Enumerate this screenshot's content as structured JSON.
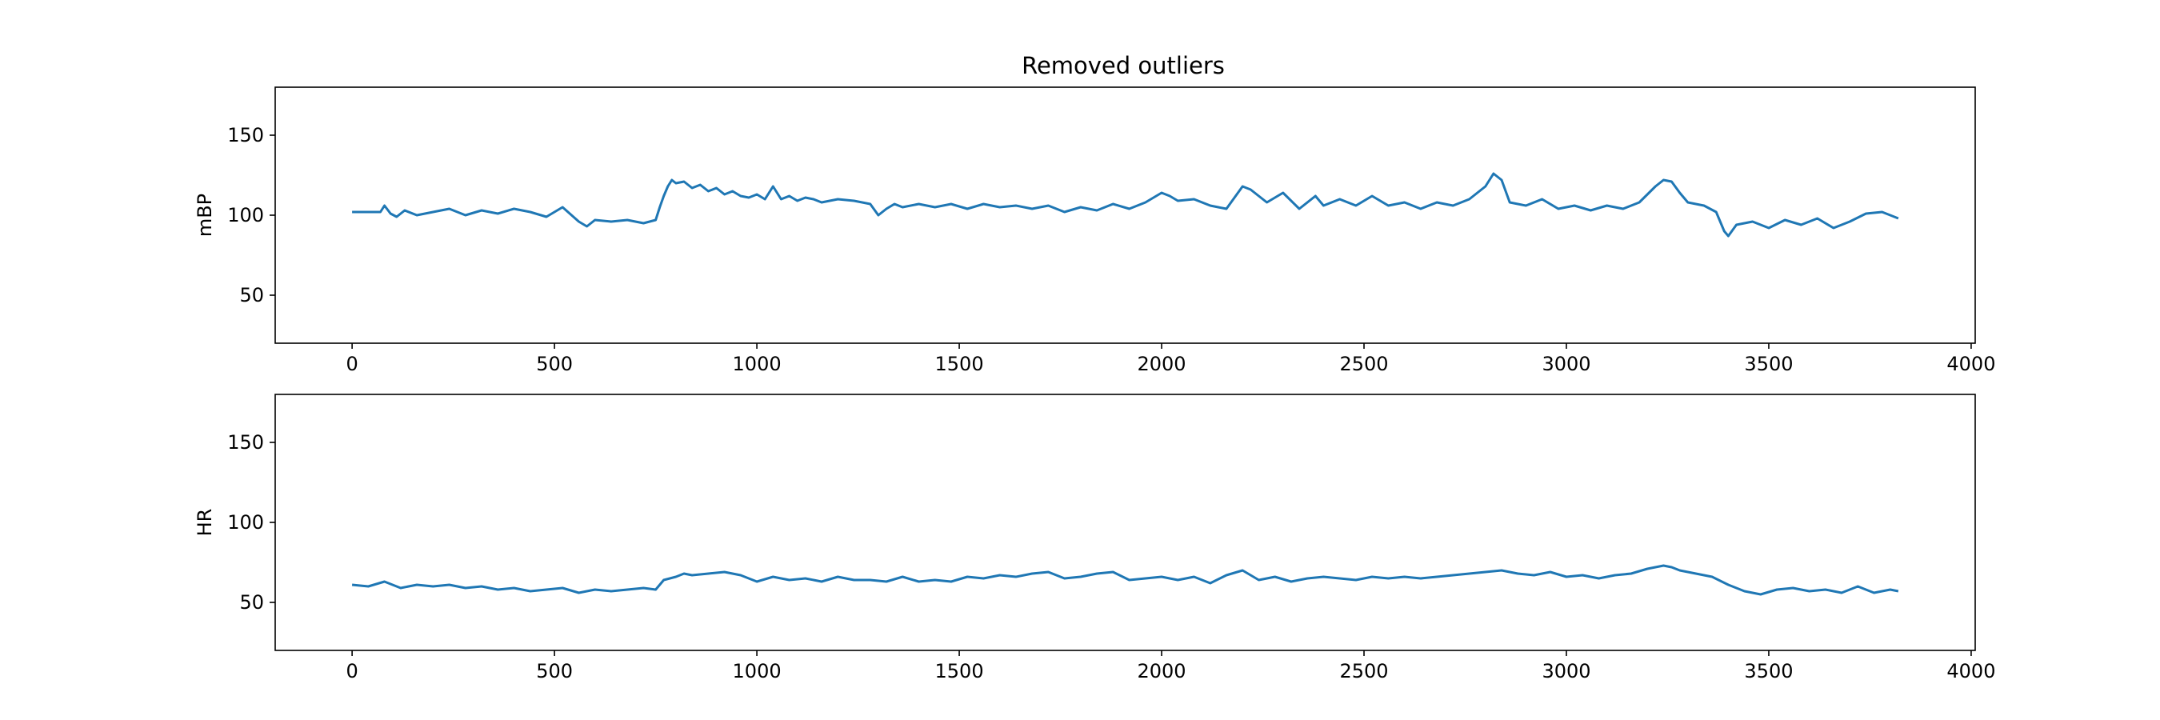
{
  "chart_data": [
    {
      "type": "line",
      "title": "Removed outliers",
      "xlabel": "",
      "ylabel": "mBP",
      "xlim": [
        -190,
        4010
      ],
      "ylim": [
        20,
        180
      ],
      "xticks": [
        0,
        500,
        1000,
        1500,
        2000,
        2500,
        3000,
        3500,
        4000
      ],
      "yticks": [
        50,
        100,
        150
      ],
      "grid": false,
      "color": "#1f77b4",
      "series": [
        {
          "x": [
            0,
            70,
            80,
            95,
            110,
            130,
            160,
            200,
            240,
            280,
            320,
            360,
            400,
            440,
            480,
            520,
            560,
            580,
            600,
            640,
            680,
            720,
            750,
            760,
            770,
            780,
            790,
            800,
            820,
            840,
            860,
            880,
            900,
            920,
            940,
            960,
            980,
            1000,
            1020,
            1040,
            1060,
            1080,
            1100,
            1120,
            1140,
            1160,
            1200,
            1240,
            1280,
            1300,
            1320,
            1340,
            1360,
            1400,
            1440,
            1480,
            1520,
            1560,
            1600,
            1640,
            1680,
            1720,
            1760,
            1800,
            1840,
            1880,
            1920,
            1960,
            2000,
            2020,
            2040,
            2080,
            2120,
            2160,
            2200,
            2220,
            2260,
            2300,
            2340,
            2380,
            2400,
            2440,
            2480,
            2520,
            2560,
            2600,
            2640,
            2680,
            2720,
            2760,
            2800,
            2820,
            2840,
            2860,
            2900,
            2940,
            2980,
            3020,
            3060,
            3100,
            3140,
            3180,
            3220,
            3240,
            3260,
            3280,
            3300,
            3340,
            3370,
            3390,
            3400,
            3420,
            3460,
            3500,
            3540,
            3580,
            3620,
            3660,
            3700,
            3740,
            3780,
            3800,
            3820
          ],
          "y": [
            102,
            102,
            106,
            101,
            99,
            103,
            100,
            102,
            104,
            100,
            103,
            101,
            104,
            102,
            99,
            105,
            96,
            93,
            97,
            96,
            97,
            95,
            97,
            105,
            112,
            118,
            122,
            120,
            121,
            117,
            119,
            115,
            117,
            113,
            115,
            112,
            111,
            113,
            110,
            118,
            110,
            112,
            109,
            111,
            110,
            108,
            110,
            109,
            107,
            100,
            104,
            107,
            105,
            107,
            105,
            107,
            104,
            107,
            105,
            106,
            104,
            106,
            102,
            105,
            103,
            107,
            104,
            108,
            114,
            112,
            109,
            110,
            106,
            104,
            118,
            116,
            108,
            114,
            104,
            112,
            106,
            110,
            106,
            112,
            106,
            108,
            104,
            108,
            106,
            110,
            118,
            126,
            122,
            108,
            106,
            110,
            104,
            106,
            103,
            106,
            104,
            108,
            118,
            122,
            121,
            114,
            108,
            106,
            102,
            90,
            87,
            94,
            96,
            92,
            97,
            94,
            98,
            92,
            96,
            101,
            102,
            100,
            98
          ]
        }
      ]
    },
    {
      "type": "line",
      "title": "",
      "xlabel": "",
      "ylabel": "HR",
      "xlim": [
        -190,
        4010
      ],
      "ylim": [
        20,
        180
      ],
      "xticks": [
        0,
        500,
        1000,
        1500,
        2000,
        2500,
        3000,
        3500,
        4000
      ],
      "yticks": [
        50,
        100,
        150
      ],
      "grid": false,
      "color": "#1f77b4",
      "series": [
        {
          "x": [
            0,
            40,
            80,
            120,
            160,
            200,
            240,
            280,
            320,
            360,
            400,
            440,
            480,
            520,
            560,
            600,
            640,
            680,
            720,
            750,
            770,
            800,
            820,
            840,
            880,
            920,
            960,
            1000,
            1040,
            1080,
            1120,
            1160,
            1200,
            1240,
            1280,
            1320,
            1360,
            1400,
            1440,
            1480,
            1520,
            1560,
            1600,
            1640,
            1680,
            1720,
            1760,
            1800,
            1840,
            1880,
            1920,
            1960,
            2000,
            2040,
            2080,
            2120,
            2160,
            2200,
            2240,
            2280,
            2320,
            2360,
            2400,
            2440,
            2480,
            2520,
            2560,
            2600,
            2640,
            2680,
            2720,
            2760,
            2800,
            2840,
            2880,
            2920,
            2960,
            3000,
            3040,
            3080,
            3120,
            3160,
            3200,
            3240,
            3260,
            3280,
            3320,
            3360,
            3400,
            3440,
            3480,
            3520,
            3560,
            3600,
            3640,
            3680,
            3720,
            3760,
            3800,
            3820
          ],
          "y": [
            61,
            60,
            63,
            59,
            61,
            60,
            61,
            59,
            60,
            58,
            59,
            57,
            58,
            59,
            56,
            58,
            57,
            58,
            59,
            58,
            64,
            66,
            68,
            67,
            68,
            69,
            67,
            63,
            66,
            64,
            65,
            63,
            66,
            64,
            64,
            63,
            66,
            63,
            64,
            63,
            66,
            65,
            67,
            66,
            68,
            69,
            65,
            66,
            68,
            69,
            64,
            65,
            66,
            64,
            66,
            62,
            67,
            70,
            64,
            66,
            63,
            65,
            66,
            65,
            64,
            66,
            65,
            66,
            65,
            66,
            67,
            68,
            69,
            70,
            68,
            67,
            69,
            66,
            67,
            65,
            67,
            68,
            71,
            73,
            72,
            70,
            68,
            66,
            61,
            57,
            55,
            58,
            59,
            57,
            58,
            56,
            60,
            56,
            58,
            57
          ]
        }
      ]
    }
  ]
}
